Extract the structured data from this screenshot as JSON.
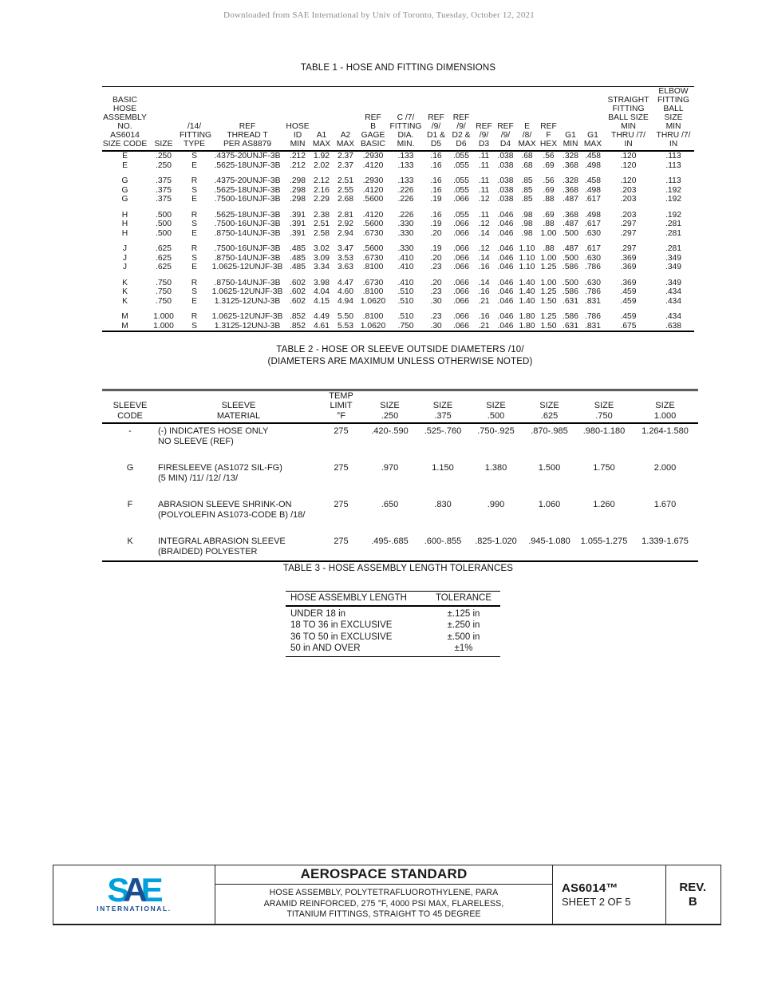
{
  "page": {
    "watermark": "Downloaded from SAE International by Univ of Toronto, Tuesday, October 12, 2021"
  },
  "colors": {
    "logo_light_blue": "#00a0dd",
    "logo_dark_blue": "#1b4f94",
    "text": "#1a1a1a",
    "watermark_gray": "#8c8c8c"
  },
  "table1": {
    "title": "TABLE 1 - HOSE AND FITTING DIMENSIONS",
    "headers": [
      "BASIC\nHOSE\nASSEMBLY\nNO.\nAS6014\nSIZE CODE",
      "SIZE",
      "/14/\nFITTING\nTYPE",
      "REF\nTHREAD T\nPER AS8879",
      "HOSE\nID\nMIN",
      "A1\nMAX",
      "A2\nMAX",
      "REF\nB\nGAGE\nBASIC",
      "C /7/\nFITTING\nDIA. MIN.",
      "REF\n/9/\nD1 &\nD5",
      "REF\n/9/\nD2 &\nD6",
      "REF\n/9/\nD3",
      "REF\n/9/\nD4",
      "E\n/8/\nMAX",
      "REF\nF\nHEX",
      "G1\nMIN",
      "G1\nMAX",
      "STRAIGHT\nFITTING\nBALL SIZE\nMIN\nTHRU /7/\nIN",
      "ELBOW\nFITTING\nBALL\nSIZE\nMIN\nTHRU /7/\nIN"
    ],
    "groups": [
      [
        [
          "E",
          ".250",
          "S",
          ".4375-20UNJF-3B",
          ".212",
          "1.92",
          "2.37",
          ".2930",
          ".133",
          ".16",
          ".055",
          ".11",
          ".038",
          ".68",
          ".56",
          ".328",
          ".458",
          ".120",
          ".113"
        ],
        [
          "E",
          ".250",
          "E",
          ".5625-18UNJF-3B",
          ".212",
          "2.02",
          "2.37",
          ".4120",
          ".133",
          ".16",
          ".055",
          ".11",
          ".038",
          ".68",
          ".69",
          ".368",
          ".498",
          ".120",
          ".113"
        ]
      ],
      [
        [
          "G",
          ".375",
          "R",
          ".4375-20UNJF-3B",
          ".298",
          "2.12",
          "2.51",
          ".2930",
          ".133",
          ".16",
          ".055",
          ".11",
          ".038",
          ".85",
          ".56",
          ".328",
          ".458",
          ".120",
          ".113"
        ],
        [
          "G",
          ".375",
          "S",
          ".5625-18UNJF-3B",
          ".298",
          "2.16",
          "2.55",
          ".4120",
          ".226",
          ".16",
          ".055",
          ".11",
          ".038",
          ".85",
          ".69",
          ".368",
          ".498",
          ".203",
          ".192"
        ],
        [
          "G",
          ".375",
          "E",
          ".7500-16UNJF-3B",
          ".298",
          "2.29",
          "2.68",
          ".5600",
          ".226",
          ".19",
          ".066",
          ".12",
          ".038",
          ".85",
          ".88",
          ".487",
          ".617",
          ".203",
          ".192"
        ]
      ],
      [
        [
          "H",
          ".500",
          "R",
          ".5625-18UNJF-3B",
          ".391",
          "2.38",
          "2.81",
          ".4120",
          ".226",
          ".16",
          ".055",
          ".11",
          ".046",
          ".98",
          ".69",
          ".368",
          ".498",
          ".203",
          ".192"
        ],
        [
          "H",
          ".500",
          "S",
          ".7500-16UNJF-3B",
          ".391",
          "2.51",
          "2.92",
          ".5600",
          ".330",
          ".19",
          ".066",
          ".12",
          ".046",
          ".98",
          ".88",
          ".487",
          ".617",
          ".297",
          ".281"
        ],
        [
          "H",
          ".500",
          "E",
          ".8750-14UNJF-3B",
          ".391",
          "2.58",
          "2.94",
          ".6730",
          ".330",
          ".20",
          ".066",
          ".14",
          ".046",
          ".98",
          "1.00",
          ".500",
          ".630",
          ".297",
          ".281"
        ]
      ],
      [
        [
          "J",
          ".625",
          "R",
          ".7500-16UNJF-3B",
          ".485",
          "3.02",
          "3.47",
          ".5600",
          ".330",
          ".19",
          ".066",
          ".12",
          ".046",
          "1.10",
          ".88",
          ".487",
          ".617",
          ".297",
          ".281"
        ],
        [
          "J",
          ".625",
          "S",
          ".8750-14UNJF-3B",
          ".485",
          "3.09",
          "3.53",
          ".6730",
          ".410",
          ".20",
          ".066",
          ".14",
          ".046",
          "1.10",
          "1.00",
          ".500",
          ".630",
          ".369",
          ".349"
        ],
        [
          "J",
          ".625",
          "E",
          "1.0625-12UNJF-3B",
          ".485",
          "3.34",
          "3.63",
          ".8100",
          ".410",
          ".23",
          ".066",
          ".16",
          ".046",
          "1.10",
          "1.25",
          ".586",
          ".786",
          ".369",
          ".349"
        ]
      ],
      [
        [
          "K",
          ".750",
          "R",
          ".8750-14UNJF-3B",
          ".602",
          "3.98",
          "4.47",
          ".6730",
          ".410",
          ".20",
          ".066",
          ".14",
          ".046",
          "1.40",
          "1.00",
          ".500",
          ".630",
          ".369",
          ".349"
        ],
        [
          "K",
          ".750",
          "S",
          "1.0625-12UNJF-3B",
          ".602",
          "4.04",
          "4.60",
          ".8100",
          ".510",
          ".23",
          ".066",
          ".16",
          ".046",
          "1.40",
          "1.25",
          ".586",
          ".786",
          ".459",
          ".434"
        ],
        [
          "K",
          ".750",
          "E",
          "1.3125-12UNJ-3B",
          ".602",
          "4.15",
          "4.94",
          "1.0620",
          ".510",
          ".30",
          ".066",
          ".21",
          ".046",
          "1.40",
          "1.50",
          ".631",
          ".831",
          ".459",
          ".434"
        ]
      ],
      [
        [
          "M",
          "1.000",
          "R",
          "1.0625-12UNJF-3B",
          ".852",
          "4.49",
          "5.50",
          ".8100",
          ".510",
          ".23",
          ".066",
          ".16",
          ".046",
          "1.80",
          "1.25",
          ".586",
          ".786",
          ".459",
          ".434"
        ],
        [
          "M",
          "1.000",
          "S",
          "1.3125-12UNJ-3B",
          ".852",
          "4.61",
          "5.53",
          "1.0620",
          ".750",
          ".30",
          ".066",
          ".21",
          ".046",
          "1.80",
          "1.50",
          ".631",
          ".831",
          ".675",
          ".638"
        ]
      ]
    ]
  },
  "table2": {
    "title_line1": "TABLE 2 - HOSE OR SLEEVE OUTSIDE DIAMETERS /10/",
    "title_line2": "(DIAMETERS ARE MAXIMUM UNLESS OTHERWISE NOTED)",
    "headers": [
      "SLEEVE\nCODE",
      "SLEEVE\nMATERIAL",
      "TEMP\nLIMIT\n°F",
      "SIZE\n.250",
      "SIZE\n.375",
      "SIZE\n.500",
      "SIZE\n.625",
      "SIZE\n.750",
      "SIZE\n1.000"
    ],
    "groups": [
      [
        [
          "-",
          "(-) INDICATES HOSE ONLY\nNO SLEEVE (REF)",
          "275",
          ".420-.590",
          ".525-.760",
          ".750-.925",
          ".870-.985",
          ".980-1.180",
          "1.264-1.580"
        ]
      ],
      [
        [
          "G",
          "FIRESLEEVE (AS1072 SIL-FG)\n(5 MIN) /11/ /12/ /13/",
          "275",
          ".970",
          "1.150",
          "1.380",
          "1.500",
          "1.750",
          "2.000"
        ]
      ],
      [
        [
          "F",
          "ABRASION SLEEVE SHRINK-ON\n(POLYOLEFIN AS1073-CODE B) /18/",
          "275",
          ".650",
          ".830",
          ".990",
          "1.060",
          "1.260",
          "1.670"
        ]
      ],
      [
        [
          "K",
          "INTEGRAL ABRASION SLEEVE\n(BRAIDED) POLYESTER",
          "275",
          ".495-.685",
          ".600-.855",
          ".825-1.020",
          ".945-1.080",
          "1.055-1.275",
          "1.339-1.675"
        ]
      ]
    ]
  },
  "table3": {
    "title": "TABLE 3 - HOSE ASSEMBLY LENGTH TOLERANCES",
    "headers": [
      "HOSE ASSEMBLY LENGTH",
      "TOLERANCE"
    ],
    "groups": [
      [
        [
          "UNDER 18 in",
          "±.125 in"
        ],
        [
          "18 TO 36 in EXCLUSIVE",
          "±.250 in"
        ],
        [
          "36 TO 50 in EXCLUSIVE",
          "±.500 in"
        ],
        [
          "50 in AND OVER",
          "±1%"
        ]
      ]
    ]
  },
  "footer": {
    "logo": {
      "letters": [
        "S",
        "A",
        "E"
      ],
      "subtext": "INTERNATIONAL."
    },
    "standard_type": "AEROSPACE STANDARD",
    "description_lines": [
      "HOSE ASSEMBLY, POLYTETRAFLUOROTHYLENE, PARA",
      "ARAMID REINFORCED, 275 °F, 4000 PSI MAX, FLARELESS,",
      "TITANIUM FITTINGS, STRAIGHT TO 45 DEGREE"
    ],
    "document_number": "AS6014™",
    "sheet": "SHEET 2 OF 5",
    "rev_label": "REV.",
    "rev_value": "B"
  }
}
